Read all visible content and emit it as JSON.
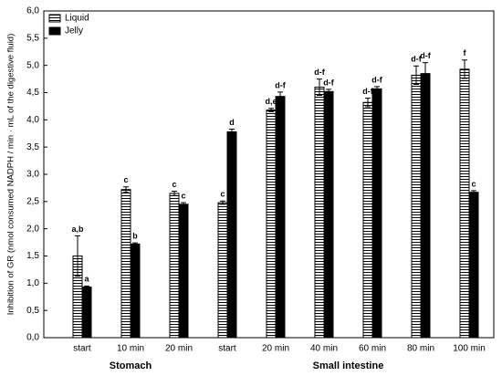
{
  "chart_data": {
    "type": "bar",
    "y_label": "Inhibition of GR (nmol consumed NADPH / min · mL of the digestive fluid)",
    "categories": [
      "start",
      "10 min",
      "20 min",
      "start",
      "20 min",
      "40 min",
      "60 min",
      "80 min",
      "100 min"
    ],
    "groups": [
      {
        "label": "Stomach",
        "count": 3
      },
      {
        "label": "Small intestine",
        "count": 6
      }
    ],
    "series": [
      {
        "name": "Liquid",
        "color": "#000000",
        "pattern": "horizontal-lines",
        "values": [
          1.5,
          2.72,
          2.65,
          2.48,
          4.18,
          4.6,
          4.32,
          4.82,
          4.93
        ],
        "errors": [
          0.37,
          0.05,
          0.04,
          0.03,
          0.03,
          0.15,
          0.08,
          0.17,
          0.17
        ],
        "letters": [
          "a,b",
          "c",
          "c",
          "c",
          "d,e",
          "d-f",
          "d-f",
          "d-f",
          "f"
        ]
      },
      {
        "name": "Jelly",
        "color": "#000000",
        "pattern": "solid",
        "values": [
          0.93,
          1.72,
          2.45,
          3.78,
          4.43,
          4.52,
          4.57,
          4.85,
          2.67
        ],
        "errors": [
          0.02,
          0.02,
          0.03,
          0.05,
          0.08,
          0.04,
          0.04,
          0.2,
          0.03
        ],
        "letters": [
          "a",
          "b",
          "c",
          "d",
          "d-f",
          "d-f",
          "d-f",
          "d-f",
          "c"
        ]
      }
    ],
    "ylim": [
      0,
      6
    ],
    "yticks": [
      {
        "value": 0,
        "label": "0,0"
      },
      {
        "value": 0.5,
        "label": "0,5"
      },
      {
        "value": 1,
        "label": "1,0"
      },
      {
        "value": 1.5,
        "label": "1,5"
      },
      {
        "value": 2,
        "label": "2,0"
      },
      {
        "value": 2.5,
        "label": "2,5"
      },
      {
        "value": 3,
        "label": "3,0"
      },
      {
        "value": 3.5,
        "label": "3,5"
      },
      {
        "value": 4,
        "label": "4,0"
      },
      {
        "value": 4.5,
        "label": "4,5"
      },
      {
        "value": 5,
        "label": "5,0"
      },
      {
        "value": 5.5,
        "label": "5,5"
      },
      {
        "value": 6,
        "label": "6,0"
      }
    ],
    "grid": false,
    "legend": "top-left"
  }
}
